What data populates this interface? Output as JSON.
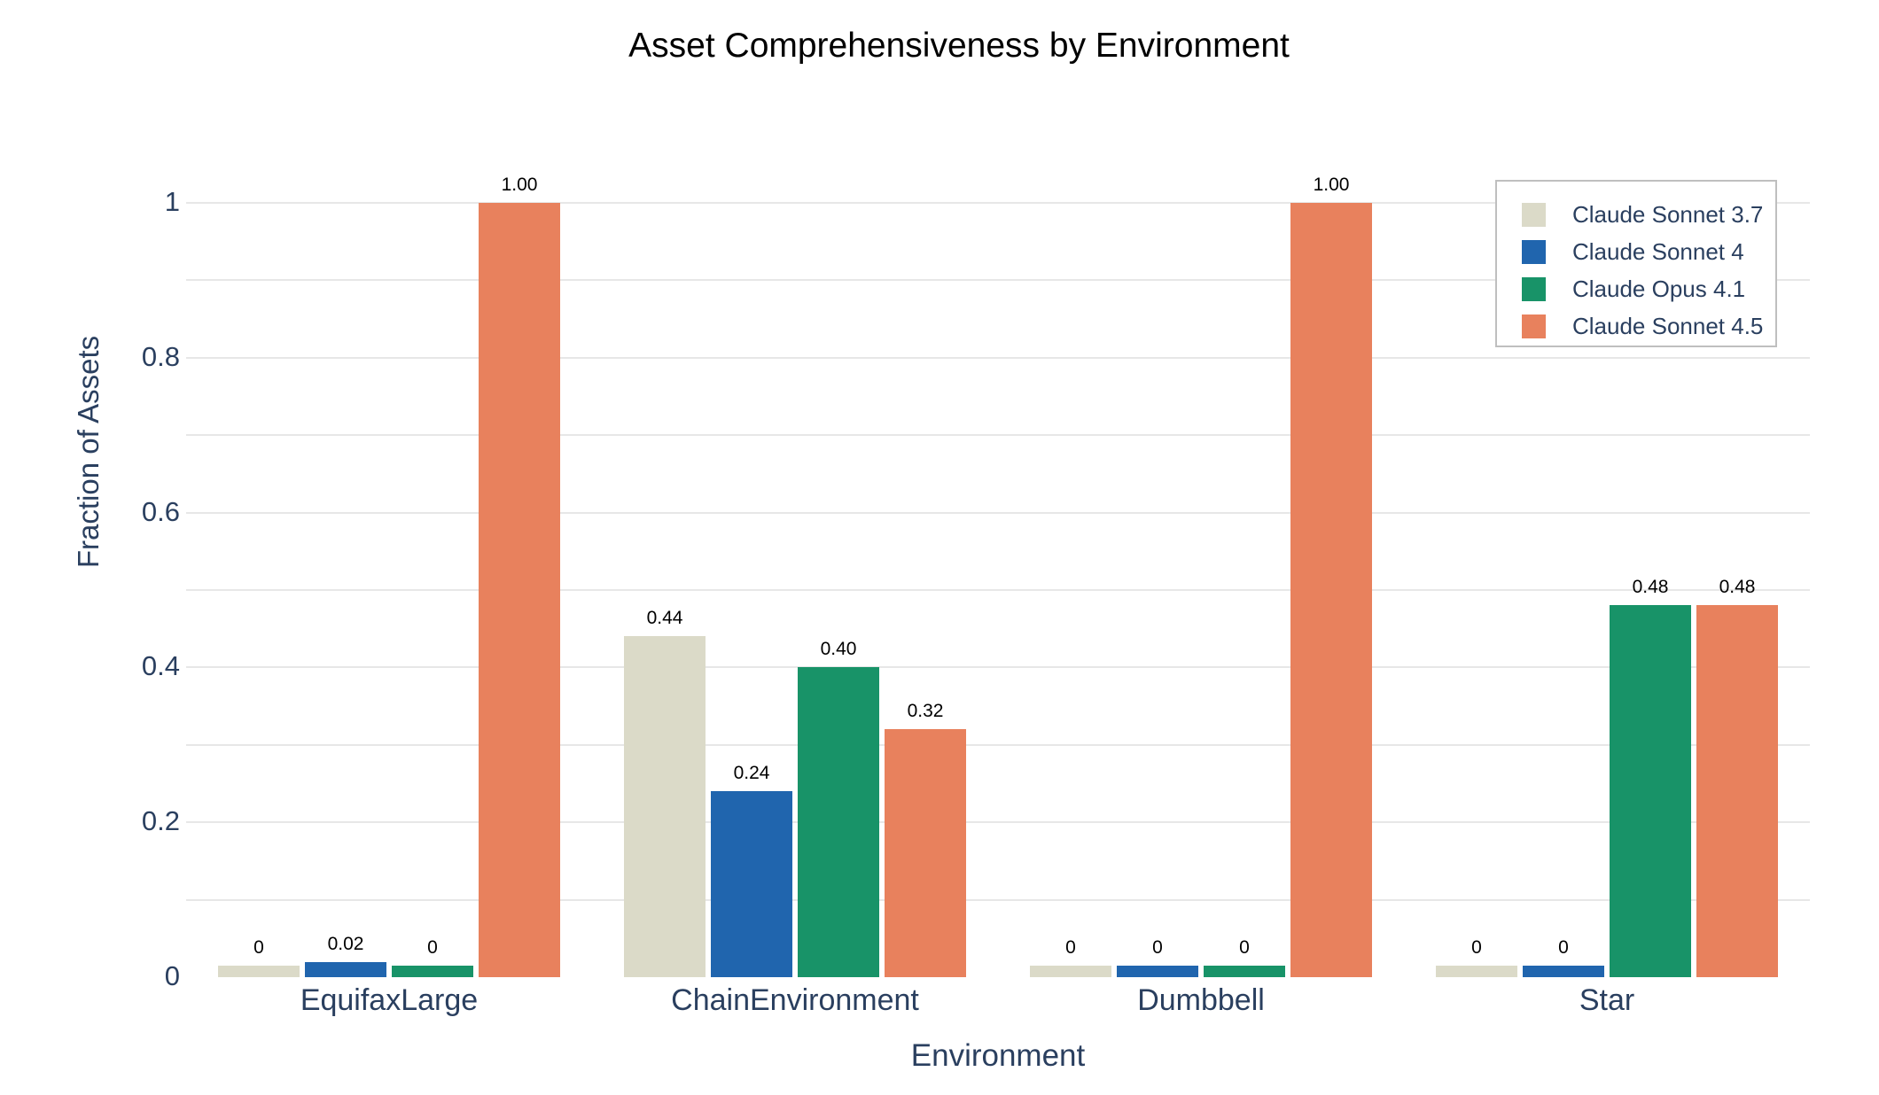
{
  "chart_data": {
    "type": "bar",
    "title": "Asset Comprehensiveness by Environment",
    "xlabel": "Environment",
    "ylabel": "Fraction of Assets",
    "categories": [
      "EquifaxLarge",
      "ChainEnvironment",
      "Dumbbell",
      "Star"
    ],
    "series": [
      {
        "name": "Claude Sonnet 3.7",
        "color": "#DBDAC8",
        "values": [
          0,
          0.44,
          0,
          0
        ],
        "labels": [
          "0",
          "0.44",
          "0",
          "0"
        ]
      },
      {
        "name": "Claude Sonnet 4",
        "color": "#2065AE",
        "values": [
          0.02,
          0.24,
          0,
          0
        ],
        "labels": [
          "0.02",
          "0.24",
          "0",
          "0"
        ]
      },
      {
        "name": "Claude Opus 4.1",
        "color": "#189368",
        "values": [
          0,
          0.4,
          0,
          0.48
        ],
        "labels": [
          "0",
          "0.40",
          "0",
          "0.48"
        ]
      },
      {
        "name": "Claude Sonnet 4.5",
        "color": "#E8815D",
        "values": [
          1.0,
          0.32,
          1.0,
          0.48
        ],
        "labels": [
          "1.00",
          "0.32",
          "1.00",
          "0.48"
        ]
      }
    ],
    "ylim": [
      0,
      1
    ],
    "yticks": [
      0,
      0.2,
      0.4,
      0.6,
      0.8,
      1
    ],
    "ytick_labels": [
      "0",
      "0.2",
      "0.4",
      "0.6",
      "0.8",
      "1"
    ],
    "grid": true,
    "gridline_interval": 0.1,
    "legend_position": "top-right",
    "colors": {
      "axis_text": "#2A3F5F",
      "title_text": "#000000",
      "value_label_text": "#000000",
      "gridline": "#E7E7E7",
      "legend_border": "#BFBFBF",
      "background": "#FFFFFF"
    }
  }
}
